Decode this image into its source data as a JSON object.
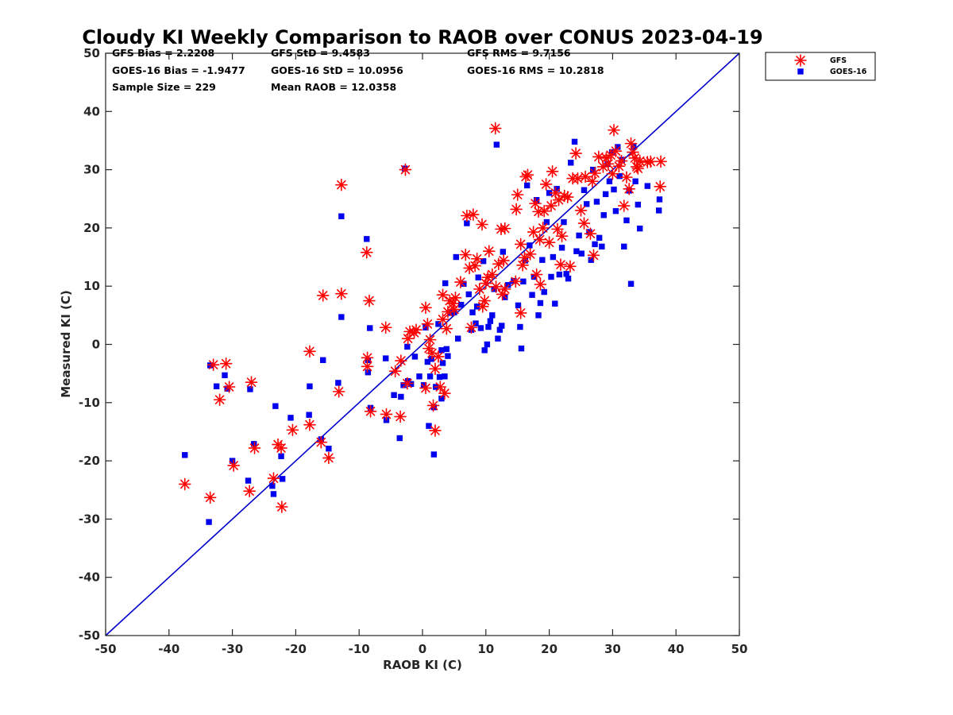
{
  "chart_data": {
    "type": "scatter",
    "title": "Cloudy KI Weekly Comparison to RAOB over CONUS 2023-04-19",
    "xlabel": "RAOB KI (C)",
    "ylabel": "Measured KI (C)",
    "xlim": [
      -50,
      50
    ],
    "ylim": [
      -50,
      50
    ],
    "xticks": [
      "-50",
      "-40",
      "-30",
      "-20",
      "-10",
      "0",
      "10",
      "20",
      "30",
      "40",
      "50"
    ],
    "yticks": [
      "-50",
      "-40",
      "-30",
      "-20",
      "-10",
      "0",
      "10",
      "20",
      "30",
      "40",
      "50"
    ],
    "grid": false,
    "legend_position": "top-right (outside)",
    "reference_line": {
      "type": "one-to-one",
      "color": "#0000cc",
      "from": [
        -50,
        -50
      ],
      "to": [
        50,
        50
      ]
    },
    "stats": [
      {
        "label": "GFS Bias = 2.2208"
      },
      {
        "label": "GFS StD = 9.4583"
      },
      {
        "label": "GFS RMS = 9.7156"
      },
      {
        "label": "GOES-16 Bias = -1.9477"
      },
      {
        "label": "GOES-16 StD = 10.0956"
      },
      {
        "label": "GOES-16 RMS = 10.2818"
      },
      {
        "label": "Sample Size = 229"
      },
      {
        "label": "Mean RAOB = 12.0358"
      }
    ],
    "series": [
      {
        "name": "GFS",
        "marker": "asterisk",
        "color": "#ff0000",
        "points": [
          [
            -37.5,
            -24
          ],
          [
            -33.5,
            -26.3
          ],
          [
            -33,
            -3.5
          ],
          [
            -31,
            -3.3
          ],
          [
            -32,
            -9.5
          ],
          [
            -30.5,
            -7.3
          ],
          [
            -29.8,
            -20.8
          ],
          [
            -27.3,
            -25.2
          ],
          [
            -27,
            -6.5
          ],
          [
            -26.5,
            -17.8
          ],
          [
            -23.5,
            -23
          ],
          [
            -22.8,
            -17.2
          ],
          [
            -22.3,
            -17.8
          ],
          [
            -22.2,
            -27.9
          ],
          [
            -20.5,
            -14.7
          ],
          [
            -17.8,
            -13.8
          ],
          [
            -17.8,
            -1.2
          ],
          [
            -16,
            -16.8
          ],
          [
            -15.7,
            8.4
          ],
          [
            -14.8,
            -19.5
          ],
          [
            -13.2,
            -8.1
          ],
          [
            -12.8,
            8.7
          ],
          [
            -12.8,
            27.4
          ],
          [
            -8.8,
            15.8
          ],
          [
            -8.7,
            -2.3
          ],
          [
            -8.7,
            -3.8
          ],
          [
            -8.4,
            7.5
          ],
          [
            -8.2,
            -11.5
          ],
          [
            -5.8,
            2.9
          ],
          [
            -5.7,
            -12
          ],
          [
            -4.3,
            -4.6
          ],
          [
            -3.5,
            -12.4
          ],
          [
            -3.4,
            -2.8
          ],
          [
            -2.7,
            30
          ],
          [
            -2.4,
            -6.7
          ],
          [
            -2.3,
            1
          ],
          [
            -2,
            2.2
          ],
          [
            -1.3,
            2
          ],
          [
            -1,
            2.5
          ],
          [
            0.5,
            -7.5
          ],
          [
            0.5,
            6.3
          ],
          [
            0.8,
            3.5
          ],
          [
            1,
            -0.7
          ],
          [
            1.2,
            0.8
          ],
          [
            1.5,
            -1.5
          ],
          [
            1.7,
            -10.5
          ],
          [
            2,
            -14.8
          ],
          [
            2,
            -4.2
          ],
          [
            2.5,
            -2.1
          ],
          [
            2.8,
            -7.3
          ],
          [
            3.2,
            4.3
          ],
          [
            3.2,
            8.5
          ],
          [
            3.5,
            -8.4
          ],
          [
            3.8,
            2.7
          ],
          [
            4,
            5.6
          ],
          [
            4.3,
            7.5
          ],
          [
            4.8,
            7
          ],
          [
            5,
            6
          ],
          [
            5.2,
            8
          ],
          [
            6,
            10.7
          ],
          [
            6.8,
            15.4
          ],
          [
            7,
            22.1
          ],
          [
            7.4,
            13.1
          ],
          [
            7.7,
            2.9
          ],
          [
            8,
            22.3
          ],
          [
            8.3,
            13.5
          ],
          [
            8.6,
            14.7
          ],
          [
            9,
            9.5
          ],
          [
            9.4,
            20.6
          ],
          [
            9.5,
            6.5
          ],
          [
            9.8,
            7.5
          ],
          [
            10,
            10.5
          ],
          [
            10.3,
            11.5
          ],
          [
            10.5,
            16
          ],
          [
            11,
            12
          ],
          [
            11.5,
            37.1
          ],
          [
            11.6,
            9.9
          ],
          [
            12,
            13.8
          ],
          [
            12.4,
            19.8
          ],
          [
            12.6,
            8.6
          ],
          [
            12.8,
            14.4
          ],
          [
            13,
            9.5
          ],
          [
            13,
            19.9
          ],
          [
            14.7,
            10.8
          ],
          [
            14.8,
            23.2
          ],
          [
            15,
            25.7
          ],
          [
            15.5,
            5.4
          ],
          [
            15.5,
            17.2
          ],
          [
            15.8,
            13.6
          ],
          [
            16.1,
            14.9
          ],
          [
            16.3,
            28.8
          ],
          [
            16.6,
            29.1
          ],
          [
            17,
            15.5
          ],
          [
            17.5,
            19.3
          ],
          [
            17.8,
            24.2
          ],
          [
            18,
            12
          ],
          [
            18.3,
            22.8
          ],
          [
            18.5,
            18
          ],
          [
            18.6,
            10.3
          ],
          [
            19,
            20
          ],
          [
            19.2,
            22.9
          ],
          [
            19.5,
            27.5
          ],
          [
            20,
            17.5
          ],
          [
            20.3,
            23.8
          ],
          [
            20.5,
            29.7
          ],
          [
            21,
            26
          ],
          [
            21.3,
            19.8
          ],
          [
            21.5,
            24.8
          ],
          [
            21.8,
            13.7
          ],
          [
            22,
            18.6
          ],
          [
            22.4,
            25.5
          ],
          [
            22.9,
            25.3
          ],
          [
            23.3,
            13.4
          ],
          [
            23.7,
            28.5
          ],
          [
            24.2,
            32.8
          ],
          [
            24.5,
            28.5
          ],
          [
            25,
            23
          ],
          [
            25.5,
            20.8
          ],
          [
            25.7,
            28.8
          ],
          [
            26.5,
            19
          ],
          [
            26.8,
            28
          ],
          [
            27,
            15.3
          ],
          [
            27.2,
            29.4
          ],
          [
            27.8,
            32.2
          ],
          [
            28.5,
            30.5
          ],
          [
            29,
            32
          ],
          [
            29.3,
            31
          ],
          [
            29.7,
            32.5
          ],
          [
            30,
            29.3
          ],
          [
            30.2,
            36.8
          ],
          [
            30.5,
            33.2
          ],
          [
            31,
            30.6
          ],
          [
            31.4,
            31.5
          ],
          [
            31.8,
            23.8
          ],
          [
            32.2,
            28.7
          ],
          [
            32.6,
            26.7
          ],
          [
            32.9,
            34.5
          ],
          [
            33.2,
            33
          ],
          [
            33.5,
            32
          ],
          [
            33.8,
            30.5
          ],
          [
            34,
            30.2
          ],
          [
            34.3,
            31.5
          ],
          [
            35.5,
            31.3
          ],
          [
            36,
            31.4
          ],
          [
            37.5,
            27.1
          ],
          [
            37.6,
            31.4
          ]
        ]
      },
      {
        "name": "GOES-16",
        "marker": "square",
        "color": "#0000ee",
        "points": [
          [
            -37.5,
            -19
          ],
          [
            -33.7,
            -30.5
          ],
          [
            -33.5,
            -3.6
          ],
          [
            -32.5,
            -7.2
          ],
          [
            -31.2,
            -5.3
          ],
          [
            -30.8,
            -7.6
          ],
          [
            -30,
            -20
          ],
          [
            -27.5,
            -23.4
          ],
          [
            -27.2,
            -7.7
          ],
          [
            -26.6,
            -17.1
          ],
          [
            -23.7,
            -24.3
          ],
          [
            -23.5,
            -25.7
          ],
          [
            -23.2,
            -10.6
          ],
          [
            -22.3,
            -19.2
          ],
          [
            -22.1,
            -23.1
          ],
          [
            -20.8,
            -12.6
          ],
          [
            -17.9,
            -12.1
          ],
          [
            -17.8,
            -7.2
          ],
          [
            -16,
            -16.3
          ],
          [
            -15.7,
            -2.7
          ],
          [
            -14.8,
            -17.9
          ],
          [
            -13.3,
            -6.6
          ],
          [
            -12.8,
            22
          ],
          [
            -12.8,
            4.7
          ],
          [
            -8.8,
            18.1
          ],
          [
            -8.6,
            -4.8
          ],
          [
            -8.6,
            -2.7
          ],
          [
            -8.3,
            2.8
          ],
          [
            -8.2,
            -10.9
          ],
          [
            -5.8,
            -2.4
          ],
          [
            -5.7,
            -13
          ],
          [
            -4.5,
            -8.7
          ],
          [
            -3.6,
            -16.1
          ],
          [
            -3.4,
            -9
          ],
          [
            -3,
            -7
          ],
          [
            -2.8,
            30.2
          ],
          [
            -2.4,
            -0.4
          ],
          [
            -2.3,
            -6.3
          ],
          [
            -1.8,
            -6.8
          ],
          [
            -1.2,
            -2.1
          ],
          [
            -0.5,
            -5.5
          ],
          [
            0.2,
            -7
          ],
          [
            0.5,
            2.9
          ],
          [
            0.8,
            -3
          ],
          [
            1,
            -14
          ],
          [
            1.2,
            -5.5
          ],
          [
            1.4,
            -2.5
          ],
          [
            1.8,
            -18.9
          ],
          [
            1.8,
            -10.8
          ],
          [
            2.1,
            -7.3
          ],
          [
            2.5,
            3.5
          ],
          [
            2.7,
            -5.6
          ],
          [
            3,
            -1
          ],
          [
            3,
            -9.3
          ],
          [
            3.2,
            -3.2
          ],
          [
            3.5,
            -5.5
          ],
          [
            3.6,
            10.5
          ],
          [
            3.8,
            -0.8
          ],
          [
            4,
            -2
          ],
          [
            4.4,
            5.4
          ],
          [
            5,
            5.5
          ],
          [
            5.3,
            15
          ],
          [
            5.6,
            1
          ],
          [
            6.1,
            6.8
          ],
          [
            6.5,
            10.4
          ],
          [
            7,
            20.8
          ],
          [
            7.3,
            8.6
          ],
          [
            7.7,
            2.5
          ],
          [
            7.9,
            5.5
          ],
          [
            8.4,
            3.6
          ],
          [
            8.6,
            6.5
          ],
          [
            8.8,
            11.5
          ],
          [
            9.2,
            2.8
          ],
          [
            9.6,
            14.3
          ],
          [
            9.8,
            -1
          ],
          [
            10.2,
            0
          ],
          [
            10.4,
            3
          ],
          [
            10.7,
            4
          ],
          [
            11,
            5
          ],
          [
            11.3,
            9.5
          ],
          [
            11.7,
            34.3
          ],
          [
            11.9,
            1
          ],
          [
            12.2,
            2.5
          ],
          [
            12.5,
            3.2
          ],
          [
            12.7,
            15.9
          ],
          [
            13,
            8.1
          ],
          [
            13.5,
            10.2
          ],
          [
            14.4,
            10.9
          ],
          [
            15.1,
            6.7
          ],
          [
            15.4,
            3
          ],
          [
            15.6,
            -0.7
          ],
          [
            15.9,
            10.8
          ],
          [
            16.2,
            14.4
          ],
          [
            16.5,
            27.3
          ],
          [
            16.9,
            17
          ],
          [
            17.3,
            8.5
          ],
          [
            17.6,
            11.6
          ],
          [
            18,
            24.8
          ],
          [
            18.3,
            5
          ],
          [
            18.6,
            7.1
          ],
          [
            18.9,
            14.5
          ],
          [
            19.2,
            9
          ],
          [
            19.6,
            21
          ],
          [
            20,
            26
          ],
          [
            20.3,
            11.6
          ],
          [
            20.6,
            15
          ],
          [
            20.9,
            7
          ],
          [
            21.2,
            26.7
          ],
          [
            21.6,
            12
          ],
          [
            22,
            16.6
          ],
          [
            22.3,
            21
          ],
          [
            22.7,
            12.1
          ],
          [
            23,
            11.3
          ],
          [
            23.4,
            31.2
          ],
          [
            24,
            34.8
          ],
          [
            24.3,
            16
          ],
          [
            24.7,
            18.7
          ],
          [
            25.1,
            15.6
          ],
          [
            25.5,
            26.5
          ],
          [
            25.9,
            24.1
          ],
          [
            26.3,
            19.3
          ],
          [
            26.6,
            14.5
          ],
          [
            26.9,
            30
          ],
          [
            27.2,
            17.2
          ],
          [
            27.5,
            24.5
          ],
          [
            27.9,
            18.3
          ],
          [
            28.3,
            16.8
          ],
          [
            28.6,
            22.2
          ],
          [
            28.9,
            25.8
          ],
          [
            29.2,
            31
          ],
          [
            29.5,
            28
          ],
          [
            29.9,
            33
          ],
          [
            30.2,
            26.6
          ],
          [
            30.5,
            22.9
          ],
          [
            30.8,
            33.9
          ],
          [
            31.1,
            28.9
          ],
          [
            31.5,
            31.7
          ],
          [
            31.8,
            16.8
          ],
          [
            32.2,
            21.3
          ],
          [
            32.6,
            26.4
          ],
          [
            32.9,
            10.4
          ],
          [
            33.3,
            33.9
          ],
          [
            33.6,
            28
          ],
          [
            34,
            24
          ],
          [
            34.3,
            19.9
          ],
          [
            35.5,
            27.2
          ],
          [
            37.3,
            23
          ],
          [
            37.4,
            24.9
          ]
        ]
      }
    ]
  }
}
